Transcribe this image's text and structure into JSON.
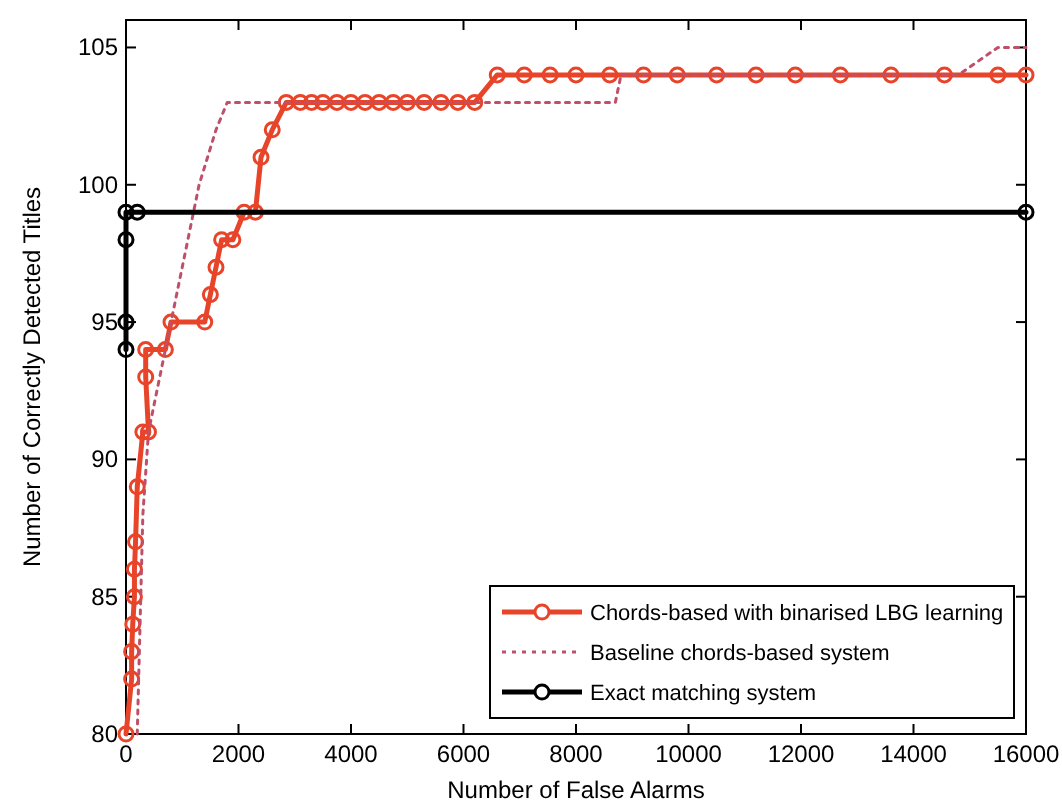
{
  "chart_data": {
    "type": "line",
    "xlabel": "Number of False Alarms",
    "ylabel": "Number of Correctly Detected Titles",
    "xlim": [
      0,
      16000
    ],
    "ylim": [
      80,
      106
    ],
    "xticks": [
      0,
      2000,
      4000,
      6000,
      8000,
      10000,
      12000,
      14000,
      16000
    ],
    "yticks": [
      80,
      85,
      90,
      95,
      100,
      105
    ],
    "grid": false,
    "legend": "bottom right",
    "series": [
      {
        "name": "Chords-based with binarised LBG learning",
        "color": "#e8442a",
        "marker": "circle",
        "line_style": "solid",
        "x": [
          0,
          100,
          100,
          120,
          150,
          150,
          170,
          200,
          300,
          400,
          350,
          350,
          700,
          800,
          1400,
          1500,
          1600,
          1700,
          1900,
          2100,
          2300,
          2400,
          2600,
          2850,
          3100,
          3300,
          3500,
          3750,
          4000,
          4250,
          4500,
          4750,
          5000,
          5300,
          5600,
          5900,
          6200,
          6600,
          7080,
          7540,
          8000,
          8600,
          9200,
          9800,
          10500,
          11200,
          11900,
          12700,
          13600,
          14550,
          15500,
          16000
        ],
        "values": [
          80,
          82,
          83,
          84,
          85,
          86,
          87,
          89,
          91,
          91,
          93,
          94,
          94,
          95,
          95,
          96,
          97,
          98,
          98,
          99,
          99,
          101,
          102,
          103,
          103,
          103,
          103,
          103,
          103,
          103,
          103,
          103,
          103,
          103,
          103,
          103,
          103,
          104,
          104,
          104,
          104,
          104,
          104,
          104,
          104,
          104,
          104,
          104,
          104,
          104,
          104,
          104
        ]
      },
      {
        "name": "Baseline chords-based system",
        "color": "#c0506a",
        "marker": "none",
        "line_style": "dotted",
        "x": [
          200,
          300,
          400,
          600,
          800,
          1000,
          1200,
          1300,
          1600,
          1800,
          8700,
          8800,
          14800,
          15500,
          16000
        ],
        "values": [
          80,
          88,
          91,
          93,
          95,
          97,
          99,
          100,
          102,
          103,
          103,
          104,
          104,
          105,
          105
        ]
      },
      {
        "name": "Exact matching system",
        "color": "#000000",
        "marker": "circle",
        "line_style": "solid",
        "x": [
          0,
          0,
          0,
          0,
          200,
          16000
        ],
        "values": [
          94,
          95,
          98,
          99,
          99,
          99
        ]
      }
    ]
  }
}
